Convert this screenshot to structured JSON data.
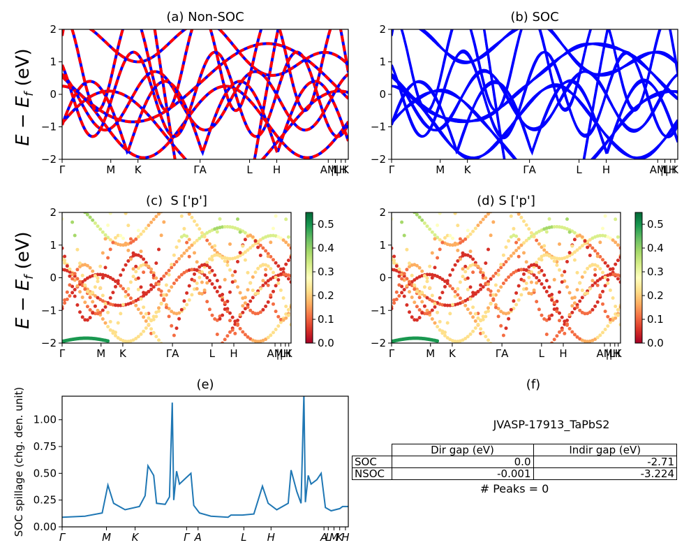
{
  "panels": [
    {
      "id": "a",
      "title": "(a) Non-SOC"
    },
    {
      "id": "b",
      "title": "(b) SOC"
    },
    {
      "id": "c",
      "title": "(c)  S ['p']"
    },
    {
      "id": "d",
      "title": "(d) S ['p']"
    },
    {
      "id": "e",
      "title": "(e)"
    },
    {
      "id": "f",
      "title": "(f)"
    }
  ],
  "band_ylabel": "E − E_f (eV)",
  "band_ylabel_parts": {
    "main": "E − E",
    "sub": "f",
    "unit": " (eV)"
  },
  "band_kpath": [
    "Γ",
    "M",
    "K",
    "Γ",
    "A",
    "L",
    "H",
    "A",
    "M",
    "L",
    "H",
    "K"
  ],
  "band_kpath_labels": [
    "Γ",
    "M",
    "K",
    "ΓA",
    "L",
    "H",
    "AM",
    "|L",
    "|H",
    "K"
  ],
  "spillage_kpath_labels": [
    "Γ",
    "M",
    "K",
    "Γ",
    "A",
    "L",
    "H",
    "A",
    "L",
    "M",
    "K",
    "H"
  ],
  "colorbar": {
    "ticks": [
      "0.0",
      "0.1",
      "0.2",
      "0.3",
      "0.4",
      "0.5"
    ],
    "range": [
      0.0,
      0.55
    ],
    "cmap": "RdYlGn"
  },
  "colors": {
    "nonsoc_solid": "#0000ff",
    "nonsoc_dash": "#ff0000",
    "soc": "#0000ff",
    "spillage": "#1f77b4"
  },
  "table": {
    "material": "JVASP-17913_TaPbS2",
    "headers": [
      "Dir gap (eV)",
      "Indir gap (eV)"
    ],
    "rows": [
      {
        "label": "SOC",
        "dir": "0.0",
        "indir": "-2.71"
      },
      {
        "label": "NSOC",
        "dir": "-0.001",
        "indir": "-3.224"
      }
    ],
    "peaks": "# Peaks = 0"
  },
  "chart_data": [
    {
      "type": "line",
      "panel": "a",
      "title": "(a) Non-SOC",
      "ylabel": "E − E_f (eV)",
      "ylim": [
        -2,
        2
      ],
      "yticks": [
        -2,
        -1,
        0,
        1,
        2
      ],
      "xticklabels": [
        "Γ",
        "M",
        "K",
        "ΓA",
        "L",
        "H",
        "AM",
        "|L",
        "|H",
        "K"
      ],
      "series": []
    },
    {
      "type": "line",
      "panel": "b",
      "title": "(b) SOC",
      "ylim": [
        -2,
        2
      ],
      "yticks": [
        -2,
        -1,
        0,
        1,
        2
      ],
      "xticklabels": [
        "Γ",
        "M",
        "K",
        "ΓA",
        "L",
        "H",
        "AM",
        "|L",
        "|H",
        "K"
      ],
      "series": []
    },
    {
      "type": "scatter",
      "panel": "c",
      "title": "(c)  S ['p']",
      "ylabel": "E − E_f (eV)",
      "ylim": [
        -2,
        2
      ],
      "colorbar_range": [
        0.0,
        0.55
      ]
    },
    {
      "type": "scatter",
      "panel": "d",
      "title": "(d) S ['p']",
      "ylim": [
        -2,
        2
      ],
      "colorbar_range": [
        0.0,
        0.55
      ]
    },
    {
      "type": "line",
      "panel": "e",
      "title": "(e)",
      "ylabel": "SOC spillage (chg. den. unit)",
      "ylim": [
        0,
        1.22
      ],
      "yticks": [
        0.0,
        0.25,
        0.5,
        0.75,
        1.0
      ],
      "xticklabels": [
        "Γ",
        "M",
        "K",
        "Γ",
        "A",
        "L",
        "H",
        "A",
        "L",
        "M",
        "K",
        "H"
      ],
      "series": [
        {
          "values": [
            [
              0,
              0.09
            ],
            [
              0.08,
              0.1
            ],
            [
              0.14,
              0.13
            ],
            [
              0.16,
              0.39
            ],
            [
              0.18,
              0.22
            ],
            [
              0.22,
              0.16
            ],
            [
              0.27,
              0.19
            ],
            [
              0.29,
              0.29
            ],
            [
              0.3,
              0.57
            ],
            [
              0.32,
              0.48
            ],
            [
              0.33,
              0.22
            ],
            [
              0.36,
              0.21
            ],
            [
              0.375,
              0.28
            ],
            [
              0.385,
              1.16
            ],
            [
              0.39,
              0.25
            ],
            [
              0.4,
              0.52
            ],
            [
              0.41,
              0.4
            ],
            [
              0.43,
              0.45
            ],
            [
              0.45,
              0.5
            ],
            [
              0.46,
              0.2
            ],
            [
              0.48,
              0.13
            ],
            [
              0.52,
              0.1
            ],
            [
              0.58,
              0.09
            ],
            [
              0.59,
              0.11
            ],
            [
              0.63,
              0.11
            ],
            [
              0.67,
              0.12
            ],
            [
              0.7,
              0.38
            ],
            [
              0.72,
              0.22
            ],
            [
              0.75,
              0.16
            ],
            [
              0.79,
              0.22
            ],
            [
              0.8,
              0.53
            ],
            [
              0.82,
              0.33
            ],
            [
              0.835,
              0.22
            ],
            [
              0.845,
              1.24
            ],
            [
              0.85,
              0.23
            ],
            [
              0.86,
              0.48
            ],
            [
              0.87,
              0.4
            ],
            [
              0.89,
              0.44
            ],
            [
              0.905,
              0.5
            ],
            [
              0.92,
              0.18
            ],
            [
              0.94,
              0.15
            ],
            [
              0.97,
              0.17
            ],
            [
              0.98,
              0.19
            ],
            [
              1.0,
              0.19
            ]
          ]
        }
      ]
    },
    {
      "type": "table",
      "panel": "f",
      "title": "(f)"
    }
  ]
}
